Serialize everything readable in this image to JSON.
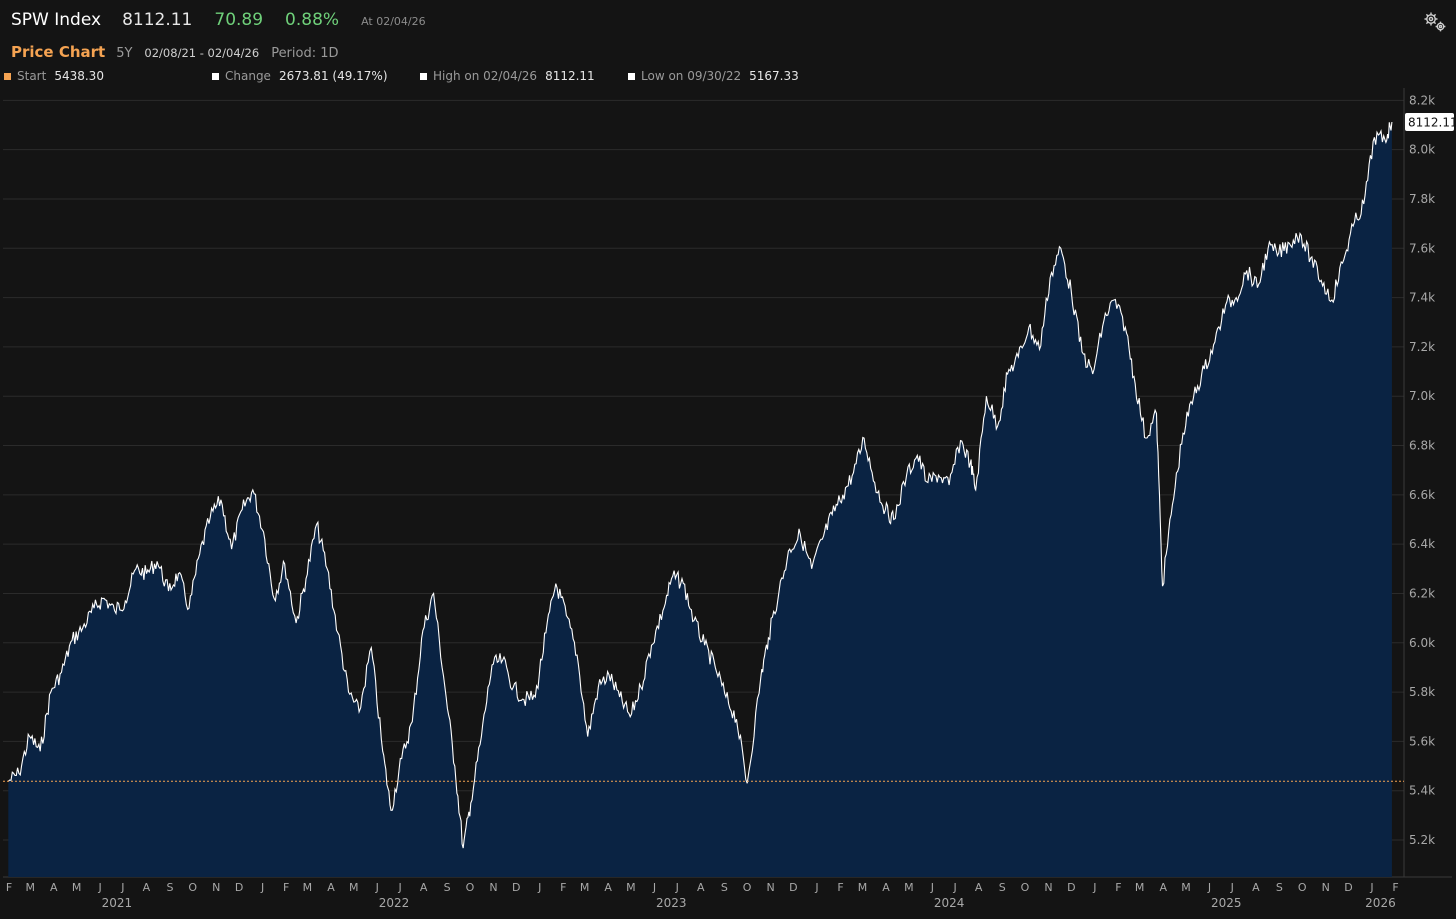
{
  "header": {
    "ticker": "SPW Index",
    "last": "8112.11",
    "change": "70.89",
    "pct_change": "0.88%",
    "as_of": "At 02/04/26",
    "settings_icon": "gears-icon"
  },
  "subheader": {
    "title": "Price Chart",
    "range": "5Y",
    "dates": "02/08/21 - 02/04/26",
    "period": "Period: 1D"
  },
  "stats": {
    "start_label": "Start",
    "start_value": "5438.30",
    "start_color": "#f5a352",
    "change_label": "Change",
    "change_value": "2673.81 (49.17%)",
    "high_label": "High on 02/04/26",
    "high_value": "8112.11",
    "low_label": "Low on 09/30/22",
    "low_value": "5167.33",
    "marker_color": "#ffffff"
  },
  "chart_data": {
    "type": "area",
    "series": [
      {
        "x": [
          "2021-02-08",
          "2021-02-22",
          "2021-03-08",
          "2021-03-22",
          "2021-04-05",
          "2021-04-19",
          "2021-05-03",
          "2021-05-17",
          "2021-06-01",
          "2021-06-14",
          "2021-06-28",
          "2021-07-12",
          "2021-07-26",
          "2021-08-09",
          "2021-08-23",
          "2021-09-07",
          "2021-09-20",
          "2021-10-04",
          "2021-10-18",
          "2021-11-01",
          "2021-11-15",
          "2021-11-29",
          "2021-12-13",
          "2021-12-27",
          "2022-01-10",
          "2022-01-24",
          "2022-02-07",
          "2022-02-22",
          "2022-03-07",
          "2022-03-21",
          "2022-04-04",
          "2022-04-18",
          "2022-05-02",
          "2022-05-16",
          "2022-06-01",
          "2022-06-16",
          "2022-06-27",
          "2022-07-11",
          "2022-07-25",
          "2022-08-08",
          "2022-08-22",
          "2022-09-06",
          "2022-09-19",
          "2022-09-30",
          "2022-10-10",
          "2022-10-24",
          "2022-11-07",
          "2022-11-21",
          "2022-12-05",
          "2022-12-19",
          "2023-01-03",
          "2023-01-17",
          "2023-01-30",
          "2023-02-13",
          "2023-02-27",
          "2023-03-13",
          "2023-03-27",
          "2023-04-10",
          "2023-04-24",
          "2023-05-08",
          "2023-05-22",
          "2023-06-05",
          "2023-06-20",
          "2023-07-03",
          "2023-07-17",
          "2023-07-31",
          "2023-08-14",
          "2023-08-28",
          "2023-09-11",
          "2023-09-25",
          "2023-10-09",
          "2023-10-27",
          "2023-11-06",
          "2023-11-20",
          "2023-12-04",
          "2023-12-18",
          "2024-01-02",
          "2024-01-16",
          "2024-01-29",
          "2024-02-12",
          "2024-02-26",
          "2024-03-11",
          "2024-03-25",
          "2024-04-08",
          "2024-04-19",
          "2024-05-06",
          "2024-05-20",
          "2024-06-03",
          "2024-06-17",
          "2024-07-01",
          "2024-07-16",
          "2024-07-29",
          "2024-08-05",
          "2024-08-19",
          "2024-09-03",
          "2024-09-16",
          "2024-09-30",
          "2024-10-14",
          "2024-10-28",
          "2024-11-11",
          "2024-11-25",
          "2024-12-09",
          "2024-12-23",
          "2025-01-06",
          "2025-01-21",
          "2025-02-03",
          "2025-02-18",
          "2025-03-03",
          "2025-03-17",
          "2025-03-31",
          "2025-04-08",
          "2025-04-21",
          "2025-05-05",
          "2025-05-19",
          "2025-06-02",
          "2025-06-16",
          "2025-06-30",
          "2025-07-14",
          "2025-07-28",
          "2025-08-11",
          "2025-08-25",
          "2025-09-08",
          "2025-09-22",
          "2025-10-06",
          "2025-10-20",
          "2025-11-03",
          "2025-11-17",
          "2025-12-01",
          "2025-12-15",
          "2025-12-29",
          "2026-01-12",
          "2026-01-26",
          "2026-02-04"
        ],
        "y": [
          5438.3,
          5470,
          5620,
          5560,
          5800,
          5880,
          6010,
          6060,
          6140,
          6180,
          6130,
          6170,
          6300,
          6280,
          6330,
          6210,
          6280,
          6140,
          6360,
          6510,
          6580,
          6380,
          6540,
          6620,
          6450,
          6180,
          6320,
          6080,
          6260,
          6480,
          6300,
          6040,
          5800,
          5720,
          5980,
          5560,
          5320,
          5530,
          5680,
          6050,
          6200,
          5820,
          5500,
          5167.33,
          5350,
          5620,
          5910,
          5930,
          5820,
          5770,
          5780,
          6040,
          6240,
          6110,
          5950,
          5620,
          5820,
          5870,
          5780,
          5700,
          5820,
          5990,
          6130,
          6270,
          6240,
          6090,
          5990,
          5900,
          5780,
          5690,
          5430,
          5860,
          6020,
          6210,
          6380,
          6440,
          6300,
          6420,
          6520,
          6600,
          6690,
          6830,
          6650,
          6540,
          6500,
          6680,
          6760,
          6650,
          6680,
          6640,
          6820,
          6730,
          6620,
          7000,
          6880,
          7090,
          7160,
          7280,
          7190,
          7480,
          7600,
          7420,
          7180,
          7090,
          7310,
          7390,
          7280,
          7050,
          6830,
          6930,
          6230,
          6560,
          6850,
          7000,
          7110,
          7220,
          7370,
          7400,
          7510,
          7440,
          7600,
          7580,
          7620,
          7660,
          7560,
          7470,
          7390,
          7540,
          7690,
          7780,
          8050,
          8040,
          8112.11
        ]
      }
    ],
    "ylim": [
      5050,
      8250
    ],
    "yticks": [
      "5.2k",
      "5.4k",
      "5.6k",
      "5.8k",
      "6.0k",
      "6.2k",
      "6.4k",
      "6.6k",
      "6.8k",
      "7.0k",
      "7.2k",
      "7.4k",
      "7.6k",
      "7.8k",
      "8.0k",
      "8.2k"
    ],
    "ytick_values": [
      5200,
      5400,
      5600,
      5800,
      6000,
      6200,
      6400,
      6600,
      6800,
      7000,
      7200,
      7400,
      7600,
      7800,
      8000,
      8200
    ],
    "xlim": [
      "2021-02-01",
      "2026-02-20"
    ],
    "month_ticks": [
      "F",
      "M",
      "A",
      "M",
      "J",
      "J",
      "A",
      "S",
      "O",
      "N",
      "D",
      "J",
      "F",
      "M",
      "A",
      "M",
      "J",
      "J",
      "A",
      "S",
      "O",
      "N",
      "D",
      "J",
      "F",
      "M",
      "A",
      "M",
      "J",
      "J",
      "A",
      "S",
      "O",
      "N",
      "D",
      "J",
      "F",
      "M",
      "A",
      "M",
      "J",
      "J",
      "A",
      "S",
      "O",
      "N",
      "D",
      "J",
      "F",
      "M",
      "A",
      "M",
      "J",
      "J",
      "A",
      "S",
      "O",
      "N",
      "D",
      "J",
      "F"
    ],
    "month_tick_dates": [
      "2021-02-01",
      "2021-03-01",
      "2021-04-01",
      "2021-05-01",
      "2021-06-01",
      "2021-07-01",
      "2021-08-01",
      "2021-09-01",
      "2021-10-01",
      "2021-11-01",
      "2021-12-01",
      "2022-01-01",
      "2022-02-01",
      "2022-03-01",
      "2022-04-01",
      "2022-05-01",
      "2022-06-01",
      "2022-07-01",
      "2022-08-01",
      "2022-09-01",
      "2022-10-01",
      "2022-11-01",
      "2022-12-01",
      "2023-01-01",
      "2023-02-01",
      "2023-03-01",
      "2023-04-01",
      "2023-05-01",
      "2023-06-01",
      "2023-07-01",
      "2023-08-01",
      "2023-09-01",
      "2023-10-01",
      "2023-11-01",
      "2023-12-01",
      "2024-01-01",
      "2024-02-01",
      "2024-03-01",
      "2024-04-01",
      "2024-05-01",
      "2024-06-01",
      "2024-07-01",
      "2024-08-01",
      "2024-09-01",
      "2024-10-01",
      "2024-11-01",
      "2024-12-01",
      "2025-01-01",
      "2025-02-01",
      "2025-03-01",
      "2025-04-01",
      "2025-05-01",
      "2025-06-01",
      "2025-07-01",
      "2025-08-01",
      "2025-09-01",
      "2025-10-01",
      "2025-11-01",
      "2025-12-01",
      "2026-01-01",
      "2026-02-01"
    ],
    "year_ticks": [
      "2021",
      "2022",
      "2023",
      "2024",
      "2025",
      "2026"
    ],
    "year_tick_dates": [
      "2021-07-01",
      "2022-07-01",
      "2023-07-01",
      "2024-07-01",
      "2025-07-01",
      "2026-01-20"
    ],
    "reference_line": 5438.3,
    "last_label": "8112.11",
    "line_color": "#ffffff",
    "fill_color": "#0a2343",
    "reference_color": "#f5a352",
    "grid": true
  }
}
